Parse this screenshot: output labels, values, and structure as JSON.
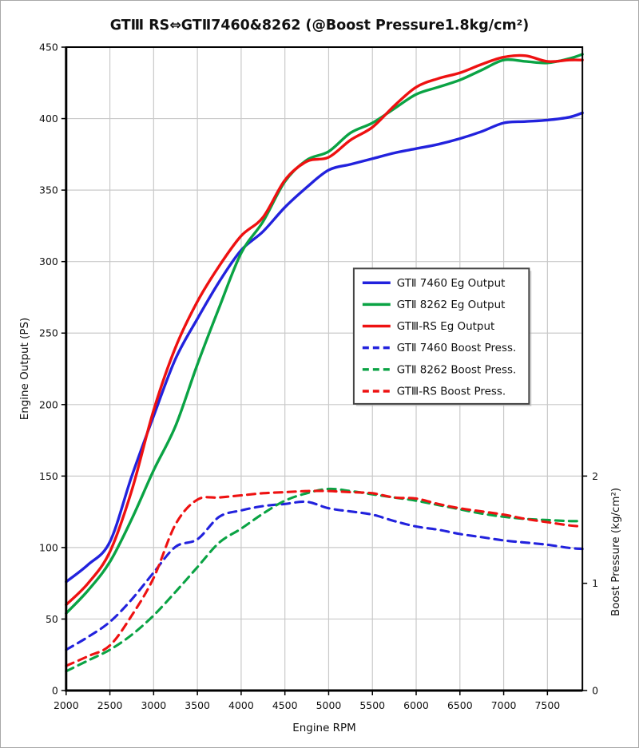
{
  "figure": {
    "border_color": "#a8a8a8",
    "background": "#ffffff"
  },
  "chart_data": {
    "type": "line",
    "title": "GTⅢ RS⇔GTⅡ7460&8262 (@Boost Pressure1.8kg/cm²)",
    "xlabel": "Engine RPM",
    "ylabel_left": "Engine Output (PS)",
    "ylabel_right": "Boost Pressure (kg/cm²)",
    "grid": true,
    "legend_position": "center-right",
    "x_range": [
      2000,
      7900
    ],
    "x_ticks": [
      2000,
      2500,
      3000,
      3500,
      4000,
      4500,
      5000,
      5500,
      6000,
      6500,
      7000,
      7500
    ],
    "y_left_range": [
      0,
      450
    ],
    "y_left_ticks": [
      0,
      50,
      100,
      150,
      200,
      250,
      300,
      350,
      400,
      450
    ],
    "y_right_ticks": [
      0,
      1,
      2
    ],
    "y_right_ps_per_unit": 75,
    "grid_color": "#c9c9c9",
    "x": [
      2000,
      2250,
      2500,
      2750,
      3000,
      3250,
      3500,
      3750,
      4000,
      4250,
      4500,
      4750,
      5000,
      5250,
      5500,
      5750,
      6000,
      6250,
      6500,
      6750,
      7000,
      7250,
      7500,
      7750,
      7900
    ],
    "series": [
      {
        "name": "GTⅡ 7460 Eg Output",
        "axis": "left",
        "style": "solid",
        "color": "#2222dd",
        "values": [
          76,
          88,
          104,
          150,
          192,
          232,
          260,
          286,
          308,
          321,
          338,
          352,
          364,
          368,
          372,
          376,
          379,
          382,
          386,
          391,
          397,
          398,
          399,
          401,
          404
        ]
      },
      {
        "name": "GTⅡ 8262 Eg Output",
        "axis": "left",
        "style": "solid",
        "color": "#0aa344",
        "values": [
          54,
          70,
          90,
          120,
          154,
          185,
          228,
          268,
          306,
          328,
          356,
          371,
          377,
          390,
          397,
          407,
          417,
          422,
          427,
          434,
          441,
          440,
          439,
          442,
          445
        ]
      },
      {
        "name": "GTⅢ-RS Eg Output",
        "axis": "left",
        "style": "solid",
        "color": "#ee1111",
        "values": [
          60,
          75,
          97,
          140,
          196,
          240,
          272,
          297,
          318,
          331,
          357,
          370,
          373,
          385,
          394,
          409,
          422,
          428,
          432,
          438,
          443,
          444,
          440,
          441,
          441
        ]
      },
      {
        "name": "GTⅡ 7460 Boost Press.",
        "axis": "right",
        "style": "dashed",
        "color": "#2222dd",
        "values": [
          0.38,
          0.5,
          0.64,
          0.85,
          1.1,
          1.34,
          1.41,
          1.62,
          1.68,
          1.72,
          1.74,
          1.76,
          1.7,
          1.67,
          1.64,
          1.58,
          1.53,
          1.5,
          1.46,
          1.43,
          1.4,
          1.38,
          1.36,
          1.33,
          1.32
        ]
      },
      {
        "name": "GTⅡ 8262 Boost Press.",
        "axis": "right",
        "style": "dashed",
        "color": "#0aa344",
        "values": [
          0.18,
          0.28,
          0.38,
          0.52,
          0.7,
          0.92,
          1.15,
          1.38,
          1.51,
          1.65,
          1.77,
          1.84,
          1.88,
          1.86,
          1.83,
          1.8,
          1.77,
          1.73,
          1.69,
          1.65,
          1.62,
          1.6,
          1.59,
          1.58,
          1.58
        ]
      },
      {
        "name": "GTⅢ-RS Boost Press.",
        "axis": "right",
        "style": "dashed",
        "color": "#ee1111",
        "values": [
          0.23,
          0.32,
          0.42,
          0.7,
          1.05,
          1.55,
          1.78,
          1.8,
          1.82,
          1.84,
          1.85,
          1.86,
          1.86,
          1.85,
          1.84,
          1.8,
          1.79,
          1.74,
          1.7,
          1.67,
          1.64,
          1.6,
          1.57,
          1.54,
          1.53
        ]
      }
    ]
  }
}
